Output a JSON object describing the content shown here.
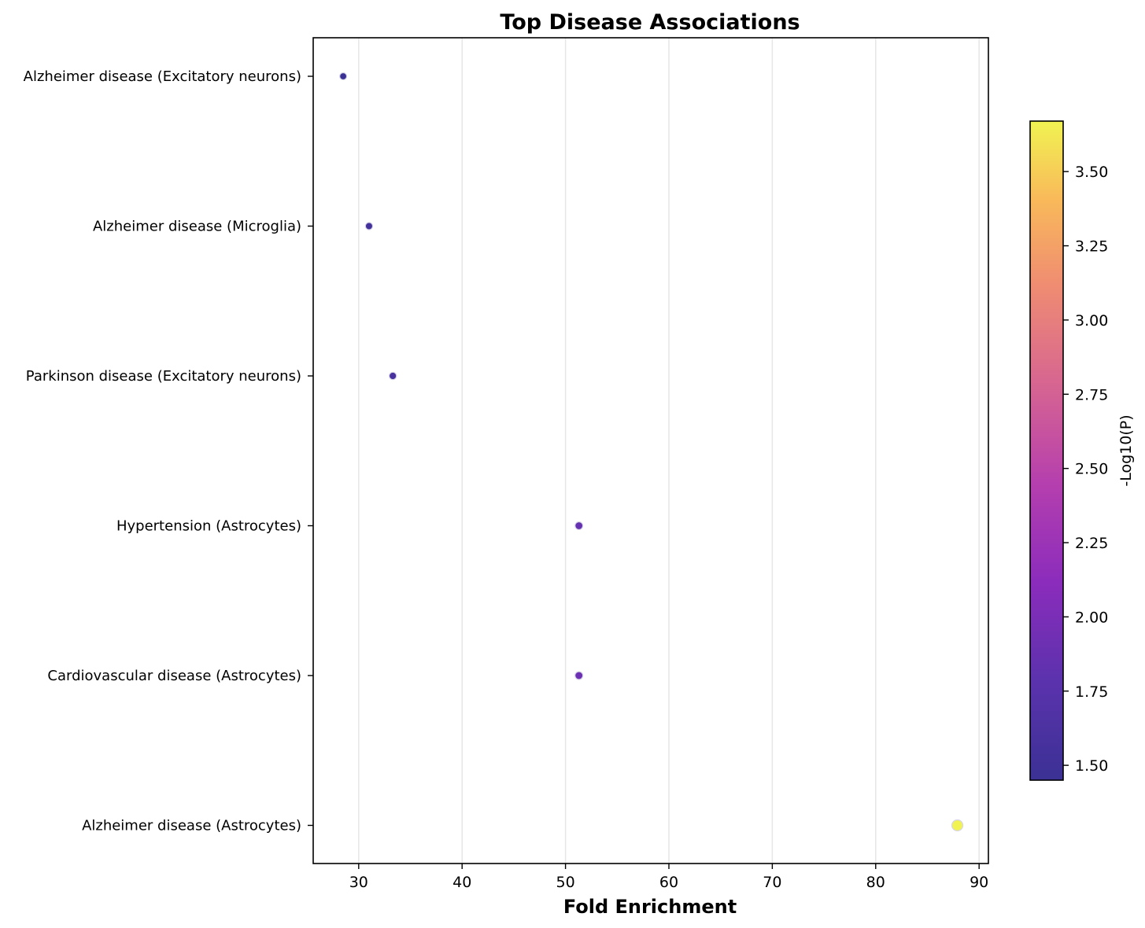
{
  "chart_data": {
    "type": "scatter",
    "title": "Top Disease Associations",
    "xlabel": "Fold Enrichment",
    "ylabel": "",
    "xlim": [
      25.6,
      90.9
    ],
    "xticks": [
      30,
      40,
      50,
      60,
      70,
      80,
      90
    ],
    "grid": "vertical",
    "categories": [
      "Alzheimer disease (Excitatory neurons)",
      "Alzheimer disease (Microglia)",
      "Parkinson disease (Excitatory neurons)",
      "Hypertension (Astrocytes)",
      "Cardiovascular disease (Astrocytes)",
      "Alzheimer disease (Astrocytes)"
    ],
    "points": [
      {
        "category": "Alzheimer disease (Excitatory neurons)",
        "x": 28.5,
        "neg_log10_p": 1.45
      },
      {
        "category": "Alzheimer disease (Microglia)",
        "x": 31.0,
        "neg_log10_p": 1.55
      },
      {
        "category": "Parkinson disease (Excitatory neurons)",
        "x": 33.3,
        "neg_log10_p": 1.6
      },
      {
        "category": "Hypertension (Astrocytes)",
        "x": 51.3,
        "neg_log10_p": 1.85
      },
      {
        "category": "Cardiovascular disease (Astrocytes)",
        "x": 51.3,
        "neg_log10_p": 1.9
      },
      {
        "category": "Alzheimer disease (Astrocytes)",
        "x": 87.9,
        "neg_log10_p": 3.67
      }
    ],
    "colorbar": {
      "label": "-Log10(P)",
      "colormap": "plasma",
      "range": [
        1.45,
        3.67
      ],
      "ticks": [
        1.5,
        1.75,
        2.0,
        2.25,
        2.5,
        2.75,
        3.0,
        3.25,
        3.5
      ],
      "tick_labels": [
        "1.50",
        "1.75",
        "2.00",
        "2.25",
        "2.50",
        "2.75",
        "3.00",
        "3.25",
        "3.50"
      ]
    }
  }
}
